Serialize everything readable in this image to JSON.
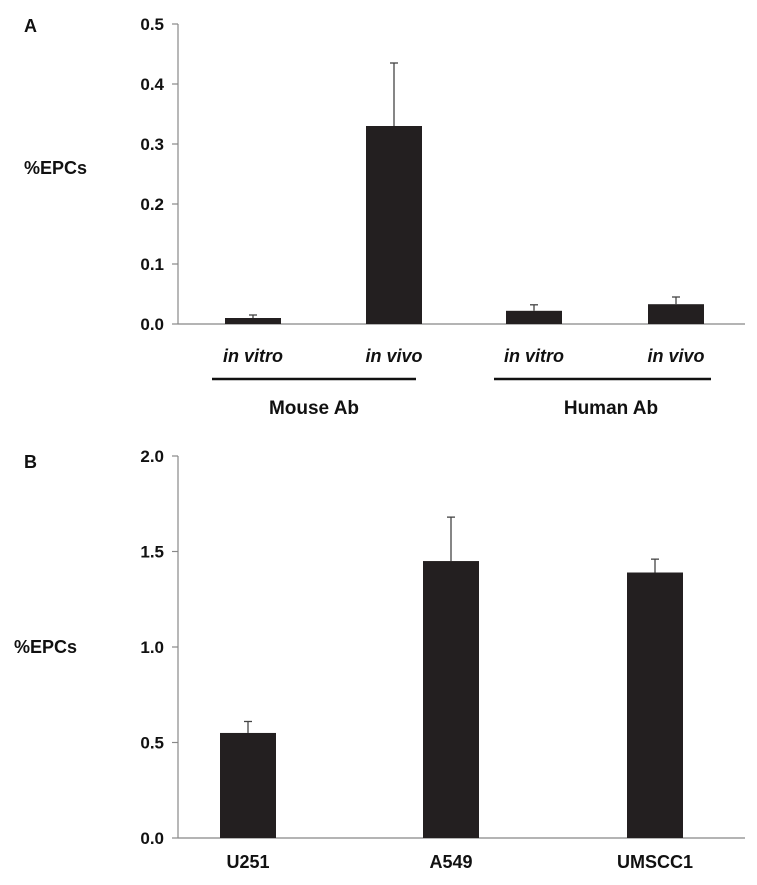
{
  "chart_data": [
    {
      "panel_label": "A",
      "type": "bar",
      "ylabel": "%EPCs",
      "ylim": [
        0,
        0.5
      ],
      "yticks": [
        "0.0",
        "0.1",
        "0.2",
        "0.3",
        "0.4",
        "0.5"
      ],
      "categories": [
        "in vitro",
        "in vivo",
        "in vitro",
        "in vivo"
      ],
      "groups": [
        {
          "label": "Mouse Ab",
          "categories": [
            "in vitro",
            "in vivo"
          ]
        },
        {
          "label": "Human Ab",
          "categories": [
            "in vitro",
            "in vivo"
          ]
        }
      ],
      "values": [
        0.01,
        0.33,
        0.022,
        0.033
      ],
      "error_upper": [
        0.005,
        0.105,
        0.01,
        0.012
      ],
      "grid": false,
      "bar_color": "#231f20"
    },
    {
      "panel_label": "B",
      "type": "bar",
      "ylabel": "%EPCs",
      "ylim": [
        0,
        2.0
      ],
      "yticks": [
        "0.0",
        "0.5",
        "1.0",
        "1.5",
        "2.0"
      ],
      "categories": [
        "U251",
        "A549",
        "UMSCC1"
      ],
      "values": [
        0.55,
        1.45,
        1.39
      ],
      "error_upper": [
        0.06,
        0.23,
        0.07
      ],
      "grid": false,
      "bar_color": "#231f20"
    }
  ]
}
